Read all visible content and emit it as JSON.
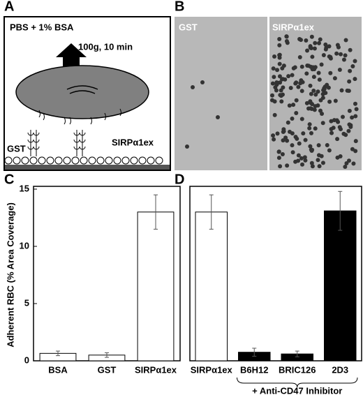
{
  "panel_labels": [
    "A",
    "B",
    "C",
    "D"
  ],
  "diagram": {
    "buffer": "PBS + 1% BSA",
    "spin": "100g, 10 min",
    "left_label": "GST",
    "right_label": "SIRPα1ex"
  },
  "micrographs": {
    "left": "GST",
    "right": "SIRPα1ex"
  },
  "chart_data": [
    {
      "type": "bar",
      "y_label": "Adherent RBC (% Area Coverage)",
      "categories": [
        "BSA",
        "GST",
        "SIRPα1ex"
      ],
      "values": [
        0.65,
        0.5,
        13
      ],
      "errors": [
        0.2,
        0.2,
        1.5
      ],
      "colors": [
        "#ffffff",
        "#ffffff",
        "#ffffff"
      ],
      "ylim": [
        0,
        15
      ],
      "yticks": [
        0,
        5,
        10,
        15
      ]
    },
    {
      "type": "bar",
      "group_label": "+ Anti-CD47 Inhibitor",
      "categories": [
        "SIRPα1ex",
        "B6H12",
        "BRIC126",
        "2D3"
      ],
      "values": [
        13,
        0.75,
        0.6,
        13.1
      ],
      "errors": [
        1.5,
        0.35,
        0.25,
        1.7
      ],
      "colors": [
        "#ffffff",
        "#000000",
        "#000000",
        "#000000"
      ],
      "ylim": [
        0,
        15
      ]
    }
  ]
}
